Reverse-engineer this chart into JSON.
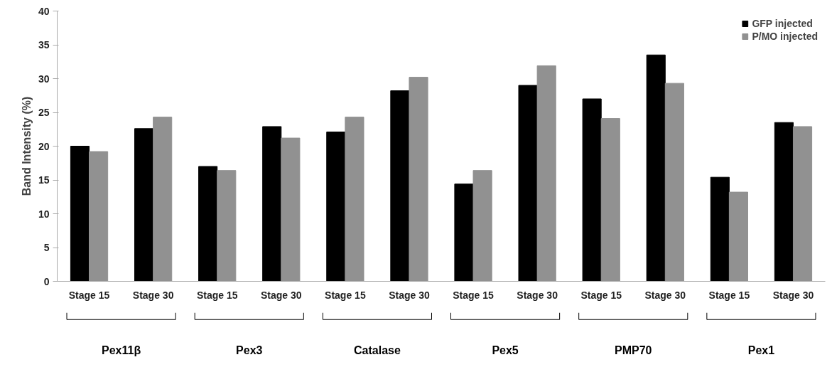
{
  "chart_data": {
    "type": "bar",
    "ylabel": "Band Intensity (%)",
    "categories": [
      "Stage 15",
      "Stage 30",
      "Stage 15",
      "Stage 30",
      "Stage 15",
      "Stage 30",
      "Stage 15",
      "Stage 30",
      "Stage 15",
      "Stage 30",
      "Stage 15",
      "Stage 30"
    ],
    "series": [
      {
        "name": "GFP injected",
        "color": "#000000",
        "values": [
          20.0,
          22.6,
          17.0,
          22.9,
          22.1,
          28.2,
          14.4,
          29.0,
          27.0,
          33.5,
          15.4,
          23.5
        ]
      },
      {
        "name": "P/MO injected",
        "color": "#919191",
        "values": [
          19.2,
          24.3,
          16.4,
          21.2,
          24.3,
          30.2,
          16.4,
          31.9,
          24.1,
          29.3,
          13.2,
          22.9
        ]
      }
    ],
    "annotations": [
      "Pex11β",
      "Pex3",
      "Catalase",
      "Pex5",
      "PMP70",
      "Pex1"
    ],
    "ylim": [
      0,
      40
    ],
    "yticks": [
      0,
      5,
      10,
      15,
      20,
      25,
      30,
      35,
      40
    ],
    "grid": false,
    "legend": "top right"
  }
}
